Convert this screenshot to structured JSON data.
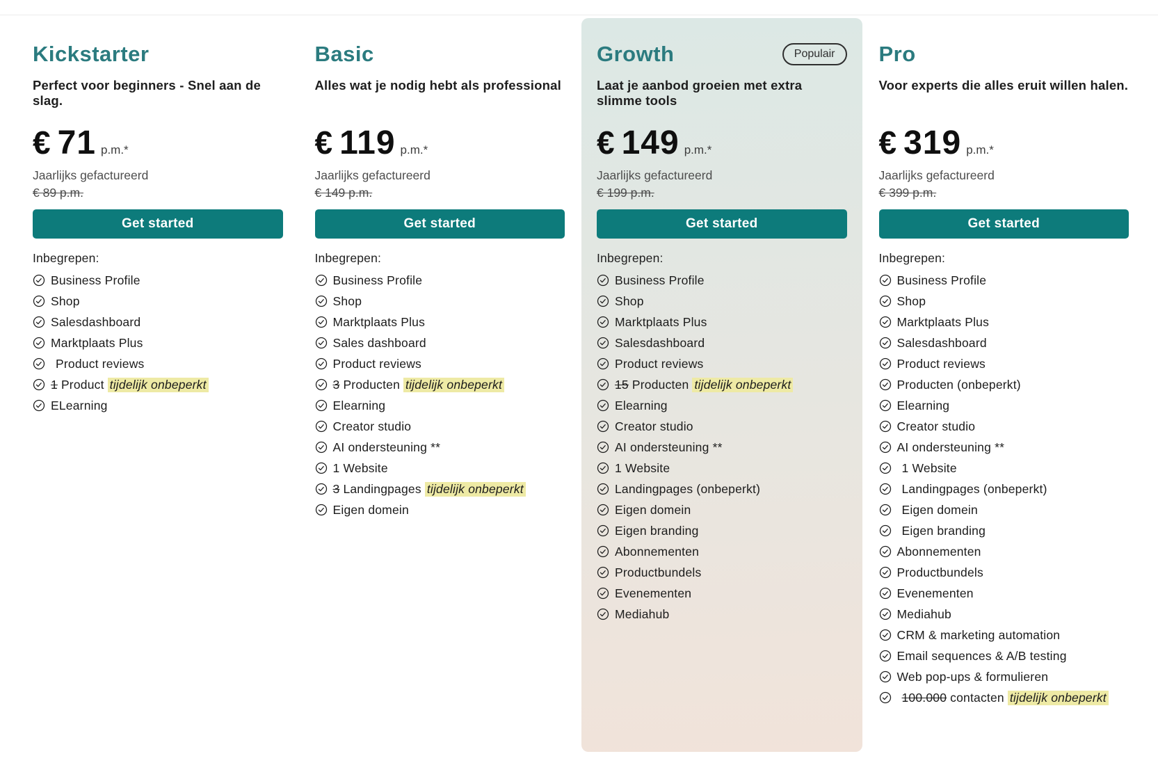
{
  "theme": {
    "title_color": "#2b7b7f",
    "button_color": "#0d7b7b",
    "button_text_color": "#ffffff",
    "highlight_color": "#eeeaa5",
    "popular_card_gradient_top": "#dce8e5",
    "popular_card_gradient_bottom": "#f1e3da",
    "check_icon": "check-circle-icon"
  },
  "plans": [
    {
      "name": "Kickstarter",
      "badge": "",
      "popular": false,
      "description": "Perfect voor beginners - Snel aan de slag.",
      "currency": "€",
      "price": "71",
      "period": "p.m.*",
      "billing": "Jaarlijks gefactureerd",
      "old_price": "€ 89 p.m.",
      "cta_label": "Get started",
      "included_label": "Inbegrepen:",
      "features": [
        {
          "text": "Business Profile"
        },
        {
          "text": "Shop"
        },
        {
          "text": "Salesdashboard"
        },
        {
          "text": "Marktplaats Plus"
        },
        {
          "text": "Product reviews",
          "pad": true
        },
        {
          "strike": "1",
          "text": "Product",
          "highlight": "tijdelijk onbeperkt"
        },
        {
          "text": "ELearning"
        }
      ]
    },
    {
      "name": "Basic",
      "badge": "",
      "popular": false,
      "description": "Alles wat je nodig hebt als professional",
      "currency": "€",
      "price": "119",
      "period": "p.m.*",
      "billing": "Jaarlijks gefactureerd",
      "old_price": "€ 149 p.m.",
      "cta_label": "Get started",
      "included_label": "Inbegrepen:",
      "features": [
        {
          "text": "Business Profile"
        },
        {
          "text": "Shop"
        },
        {
          "text": "Marktplaats Plus"
        },
        {
          "text": "Sales dashboard"
        },
        {
          "text": "Product reviews"
        },
        {
          "strike": "3",
          "text": "Producten",
          "highlight": "tijdelijk onbeperkt"
        },
        {
          "text": "Elearning"
        },
        {
          "text": "Creator studio"
        },
        {
          "text": "AI ondersteuning **"
        },
        {
          "text": "1 Website"
        },
        {
          "strike": "3",
          "text": "Landingpages",
          "highlight": "tijdelijk onbeperkt"
        },
        {
          "text": "Eigen domein"
        }
      ]
    },
    {
      "name": "Growth",
      "badge": "Populair",
      "popular": true,
      "description": "Laat je aanbod groeien met extra slimme tools",
      "currency": "€",
      "price": "149",
      "period": "p.m.*",
      "billing": "Jaarlijks gefactureerd",
      "old_price": "€ 199 p.m.",
      "cta_label": "Get started",
      "included_label": "Inbegrepen:",
      "features": [
        {
          "text": "Business Profile"
        },
        {
          "text": "Shop"
        },
        {
          "text": "Marktplaats Plus"
        },
        {
          "text": "Salesdashboard"
        },
        {
          "text": "Product reviews"
        },
        {
          "strike": "15",
          "text": "Producten",
          "highlight": "tijdelijk onbeperkt"
        },
        {
          "text": "Elearning"
        },
        {
          "text": "Creator studio"
        },
        {
          "text": "AI ondersteuning **"
        },
        {
          "text": "1 Website"
        },
        {
          "text": "Landingpages (onbeperkt)"
        },
        {
          "text": "Eigen domein"
        },
        {
          "text": "Eigen branding"
        },
        {
          "text": "Abonnementen"
        },
        {
          "text": "Productbundels"
        },
        {
          "text": "Evenementen"
        },
        {
          "text": "Mediahub"
        }
      ]
    },
    {
      "name": "Pro",
      "badge": "",
      "popular": false,
      "description": "Voor experts die alles eruit willen halen.",
      "currency": "€",
      "price": "319",
      "period": "p.m.*",
      "billing": "Jaarlijks gefactureerd",
      "old_price": "€ 399 p.m.",
      "cta_label": "Get started",
      "included_label": "Inbegrepen:",
      "features": [
        {
          "text": "Business Profile"
        },
        {
          "text": "Shop"
        },
        {
          "text": "Marktplaats Plus"
        },
        {
          "text": "Salesdashboard"
        },
        {
          "text": "Product reviews"
        },
        {
          "text": "Producten (onbeperkt)"
        },
        {
          "text": "Elearning"
        },
        {
          "text": "Creator studio"
        },
        {
          "text": "AI ondersteuning **"
        },
        {
          "text": "1 Website",
          "pad": true
        },
        {
          "text": "Landingpages (onbeperkt)",
          "pad": true
        },
        {
          "text": "Eigen domein",
          "pad": true
        },
        {
          "text": "Eigen branding",
          "pad": true
        },
        {
          "text": "Abonnementen"
        },
        {
          "text": "Productbundels"
        },
        {
          "text": "Evenementen"
        },
        {
          "text": "Mediahub"
        },
        {
          "text": "CRM & marketing automation"
        },
        {
          "text": "Email sequences & A/B testing"
        },
        {
          "text": "Web pop-ups & formulieren"
        },
        {
          "strike": "100.000",
          "text": "contacten",
          "highlight": "tijdelijk onbeperkt",
          "pad": true
        }
      ]
    }
  ]
}
